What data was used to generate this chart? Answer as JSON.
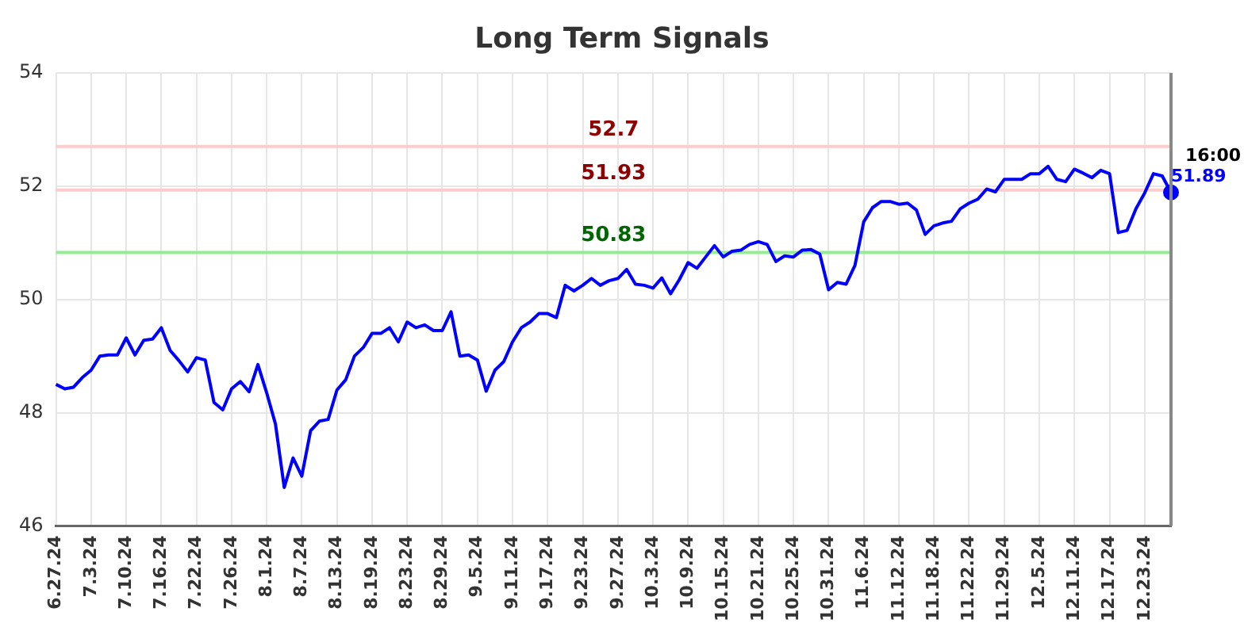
{
  "chart_data": {
    "type": "line",
    "title": "Long Term Signals",
    "categories": [
      "6.27.24",
      null,
      null,
      null,
      "7.3.24",
      null,
      null,
      null,
      "7.10.24",
      null,
      null,
      null,
      "7.16.24",
      null,
      null,
      null,
      "7.22.24",
      null,
      null,
      null,
      "7.26.24",
      null,
      null,
      null,
      "8.1.24",
      null,
      null,
      null,
      "8.7.24",
      null,
      null,
      null,
      "8.13.24",
      null,
      null,
      null,
      "8.19.24",
      null,
      null,
      null,
      "8.23.24",
      null,
      null,
      null,
      "8.29.24",
      null,
      null,
      null,
      "9.5.24",
      null,
      null,
      null,
      "9.11.24",
      null,
      null,
      null,
      "9.17.24",
      null,
      null,
      null,
      "9.23.24",
      null,
      null,
      null,
      "9.27.24",
      null,
      null,
      null,
      "10.3.24",
      null,
      null,
      null,
      "10.9.24",
      null,
      null,
      null,
      "10.15.24",
      null,
      null,
      null,
      "10.21.24",
      null,
      null,
      null,
      "10.25.24",
      null,
      null,
      null,
      "10.31.24",
      null,
      null,
      null,
      "11.6.24",
      null,
      null,
      null,
      "11.12.24",
      null,
      null,
      null,
      "11.18.24",
      null,
      null,
      null,
      "11.22.24",
      null,
      null,
      null,
      "11.29.24",
      null,
      null,
      null,
      "12.5.24",
      null,
      null,
      null,
      "12.11.24",
      null,
      null,
      null,
      "12.17.24",
      null,
      null,
      null,
      "12.23.24",
      null,
      null,
      null
    ],
    "series": [
      {
        "color": "#0000ff",
        "values": [
          48.5,
          48.42,
          48.45,
          48.62,
          48.75,
          49.0,
          49.02,
          49.02,
          49.32,
          49.02,
          49.28,
          49.3,
          49.5,
          49.1,
          48.92,
          48.72,
          48.97,
          48.93,
          48.18,
          48.05,
          48.42,
          48.55,
          48.37,
          48.85,
          48.35,
          47.8,
          46.68,
          47.2,
          46.88,
          47.68,
          47.85,
          47.88,
          48.4,
          48.58,
          49.0,
          49.15,
          49.4,
          49.4,
          49.5,
          49.25,
          49.6,
          49.5,
          49.55,
          49.45,
          49.45,
          49.78,
          49.0,
          49.02,
          48.93,
          48.38,
          48.75,
          48.9,
          49.25,
          49.5,
          49.6,
          49.75,
          49.75,
          49.68,
          50.25,
          50.15,
          50.25,
          50.37,
          50.25,
          50.33,
          50.37,
          50.53,
          50.27,
          50.25,
          50.2,
          50.38,
          50.1,
          50.35,
          50.65,
          50.55,
          50.75,
          50.95,
          50.75,
          50.85,
          50.87,
          50.97,
          51.02,
          50.97,
          50.67,
          50.77,
          50.75,
          50.87,
          50.88,
          50.8,
          50.17,
          50.3,
          50.27,
          50.6,
          51.37,
          51.62,
          51.73,
          51.73,
          51.68,
          51.7,
          51.58,
          51.15,
          51.3,
          51.35,
          51.38,
          51.6,
          51.7,
          51.77,
          51.95,
          51.9,
          52.12,
          52.12,
          52.12,
          52.22,
          52.22,
          52.35,
          52.12,
          52.08,
          52.3,
          52.23,
          52.15,
          52.28,
          52.22,
          51.18,
          51.22,
          51.6,
          51.88,
          52.22,
          52.18,
          51.89
        ],
        "value_labels": [
          null,
          null,
          null,
          null,
          null,
          null,
          null,
          null,
          null,
          null,
          null,
          null,
          null,
          null,
          null,
          null,
          null,
          null,
          null,
          null,
          null,
          null,
          null,
          null,
          null,
          null,
          null,
          null,
          null,
          null,
          null,
          null,
          null,
          null,
          null,
          null,
          null,
          null,
          null,
          null,
          null,
          null,
          null,
          null,
          null,
          null,
          null,
          null,
          null,
          null,
          null,
          null,
          null,
          null,
          null,
          null,
          null,
          null,
          null,
          null,
          null,
          null,
          null,
          null,
          null,
          null,
          null,
          null,
          null,
          null,
          null,
          null,
          null,
          null,
          null,
          null,
          null,
          null,
          null,
          null,
          null,
          null,
          null,
          null,
          null,
          null,
          null,
          null,
          null,
          null,
          null,
          null,
          null,
          null,
          null,
          null,
          null,
          null,
          null,
          null,
          null,
          null,
          null,
          null,
          null,
          null,
          null,
          null,
          null,
          null,
          null,
          null,
          null,
          null,
          null,
          null,
          null,
          null,
          null,
          null,
          null,
          null,
          null,
          null,
          null,
          null,
          null,
          "51.89"
        ]
      }
    ],
    "ylim": [
      46,
      54
    ],
    "yticks": [
      46,
      48,
      50,
      52,
      54
    ],
    "grid": true,
    "legend": false,
    "marker": "none",
    "line_style": "solid",
    "ref_lines": [
      {
        "axis": "y",
        "value": 52.7,
        "label": "52.7",
        "color": "#ffcccc"
      },
      {
        "axis": "y",
        "value": 51.93,
        "label": "51.93",
        "color": "#ffcccc"
      },
      {
        "axis": "y",
        "value": 50.83,
        "label": "50.83",
        "color": "#90ee90"
      }
    ],
    "annotations": [
      "16:00"
    ]
  }
}
